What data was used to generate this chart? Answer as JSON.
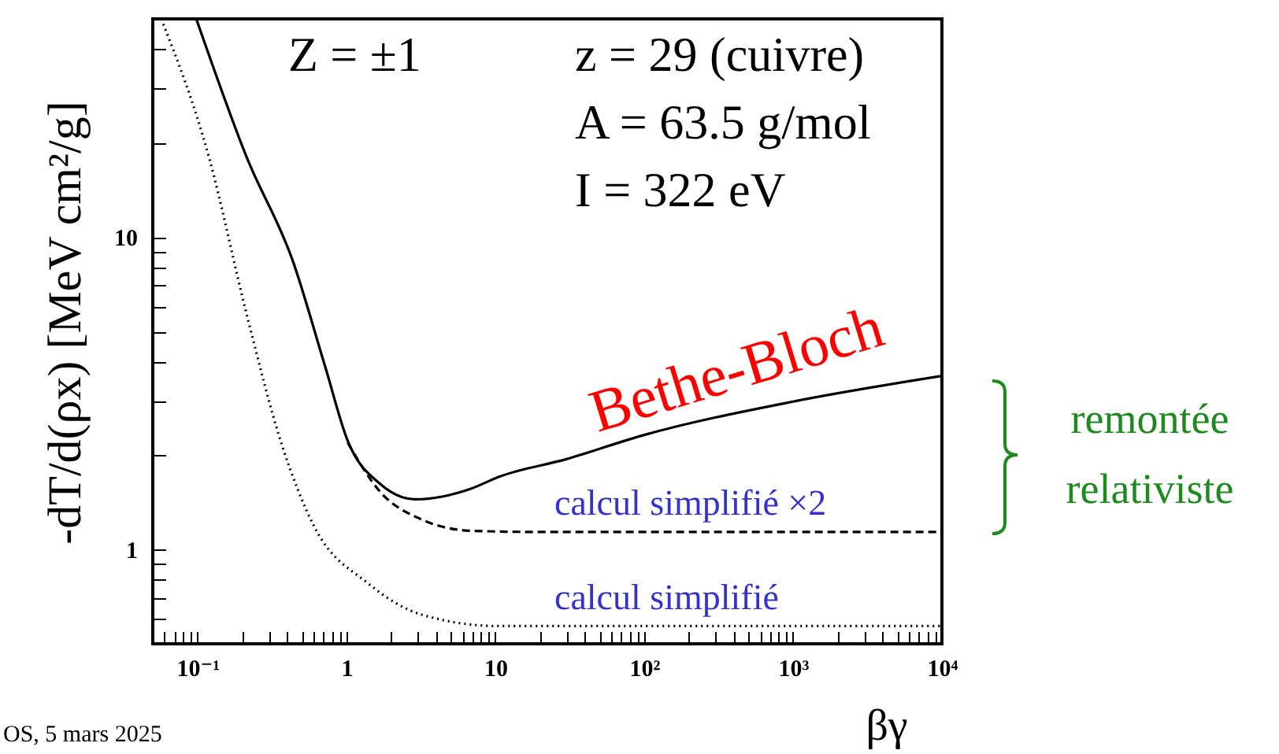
{
  "chart_data": {
    "type": "line",
    "xlabel": "βγ",
    "ylabel": "-dT/d(ρx)  [MeV cm²/g]",
    "log": "xy",
    "grid": false,
    "xlim": [
      0.05,
      10000
    ],
    "ylim": [
      0.5,
      50
    ],
    "xticks": [
      {
        "value": 0.05,
        "label": null
      },
      {
        "value": 0.06,
        "label": null
      },
      {
        "value": 0.07,
        "label": null
      },
      {
        "value": 0.08,
        "label": null
      },
      {
        "value": 0.09,
        "label": null
      },
      {
        "value": 0.1,
        "label": "10⁻¹"
      },
      {
        "value": 0.2,
        "label": null
      },
      {
        "value": 0.3,
        "label": null
      },
      {
        "value": 0.4,
        "label": null
      },
      {
        "value": 0.5,
        "label": null
      },
      {
        "value": 0.6,
        "label": null
      },
      {
        "value": 0.7,
        "label": null
      },
      {
        "value": 0.8,
        "label": null
      },
      {
        "value": 0.9,
        "label": null
      },
      1,
      {
        "value": 2,
        "label": null
      },
      {
        "value": 3,
        "label": null
      },
      {
        "value": 4,
        "label": null
      },
      {
        "value": 5,
        "label": null
      },
      {
        "value": 6,
        "label": null
      },
      {
        "value": 7,
        "label": null
      },
      {
        "value": 8,
        "label": null
      },
      {
        "value": 9,
        "label": null
      },
      10,
      {
        "value": 20,
        "label": null
      },
      {
        "value": 30,
        "label": null
      },
      {
        "value": 40,
        "label": null
      },
      {
        "value": 50,
        "label": null
      },
      {
        "value": 60,
        "label": null
      },
      {
        "value": 70,
        "label": null
      },
      {
        "value": 80,
        "label": null
      },
      {
        "value": 90,
        "label": null
      },
      {
        "value": 100,
        "label": "10²"
      },
      {
        "value": 200,
        "label": null
      },
      {
        "value": 300,
        "label": null
      },
      {
        "value": 400,
        "label": null
      },
      {
        "value": 500,
        "label": null
      },
      {
        "value": 600,
        "label": null
      },
      {
        "value": 700,
        "label": null
      },
      {
        "value": 800,
        "label": null
      },
      {
        "value": 900,
        "label": null
      },
      {
        "value": 1000,
        "label": "10³"
      },
      {
        "value": 2000,
        "label": null
      },
      {
        "value": 3000,
        "label": null
      },
      {
        "value": 4000,
        "label": null
      },
      {
        "value": 5000,
        "label": null
      },
      {
        "value": 6000,
        "label": null
      },
      {
        "value": 7000,
        "label": null
      },
      {
        "value": 8000,
        "label": null
      },
      {
        "value": 9000,
        "label": null
      },
      {
        "value": 10000,
        "label": "10⁴"
      }
    ],
    "yticks": [
      {
        "value": 0.6,
        "label": null
      },
      {
        "value": 0.7,
        "label": null
      },
      {
        "value": 0.8,
        "label": null
      },
      {
        "value": 0.9,
        "label": null
      },
      1,
      {
        "value": 2,
        "label": null
      },
      {
        "value": 3,
        "label": null
      },
      {
        "value": 4,
        "label": null
      },
      {
        "value": 5,
        "label": null
      },
      {
        "value": 6,
        "label": null
      },
      {
        "value": 7,
        "label": null
      },
      {
        "value": 8,
        "label": null
      },
      {
        "value": 9,
        "label": null
      },
      10,
      {
        "value": 20,
        "label": null
      },
      {
        "value": 30,
        "label": null
      },
      {
        "value": 40,
        "label": null
      }
    ],
    "series": [
      {
        "name": "Bethe-Bloch",
        "color": "#000000",
        "line_style": "solid",
        "x": [
          0.098,
          0.213,
          0.44,
          0.72,
          1.02,
          1.67,
          2.9,
          6.9,
          10.5,
          30,
          100,
          1000,
          10000
        ],
        "values": [
          50,
          18.1,
          8.3,
          3.85,
          2.23,
          1.63,
          1.45,
          1.57,
          1.71,
          1.95,
          2.33,
          2.98,
          3.6
        ]
      },
      {
        "name": "calcul simplifié ×2",
        "color": "#000000",
        "line_style": "dashed",
        "x": [
          1.02,
          1.67,
          3.2,
          6.9,
          20,
          10000
        ],
        "values": [
          2.2,
          1.54,
          1.25,
          1.15,
          1.14,
          1.14
        ]
      },
      {
        "name": "calcul simplifié",
        "color": "#000000",
        "line_style": "dotted",
        "x": [
          0.057,
          0.119,
          0.213,
          0.37,
          0.6,
          1.4,
          3.2,
          10.5,
          10000
        ],
        "values": [
          50,
          18.1,
          5.7,
          2.15,
          1.2,
          0.78,
          0.62,
          0.57,
          0.57
        ]
      }
    ],
    "annotations": [
      "Z = ±1",
      "z = 29 (cuivre)",
      "A = 63.5 g/mol",
      "I = 322 eV",
      "remontée relativiste",
      "OS, 5 mars 2025"
    ]
  }
}
